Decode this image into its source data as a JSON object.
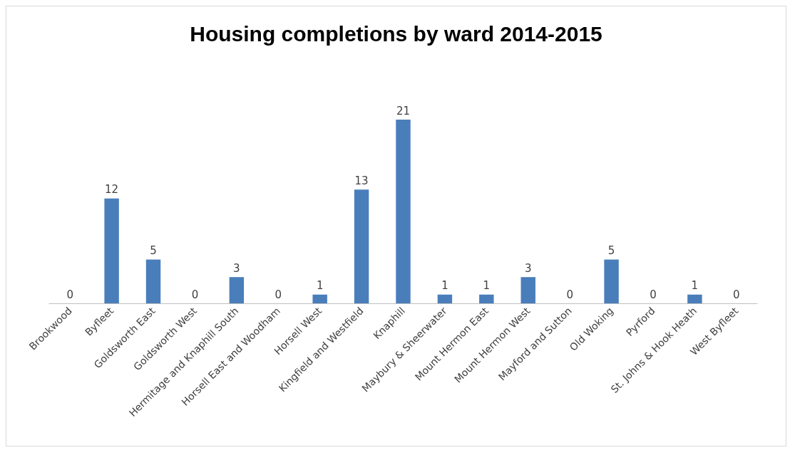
{
  "chart_data": {
    "type": "bar",
    "title": "Housing completions by ward 2014-2015",
    "categories": [
      "Brookwood",
      "Byfleet",
      "Goldsworth East",
      "Goldsworth West",
      "Hermitage and Knaphill South",
      "Horsell East and Woodham",
      "Horsell West",
      "Kingfield and Westfield",
      "Knaphill",
      "Maybury & Sheerwater",
      "Mount Hermon East",
      "Mount Hermon West",
      "Mayford and Sutton",
      "Old Woking",
      "Pyrford",
      "St. Johns & Hook Heath",
      "West Byfleet"
    ],
    "values": [
      0,
      12,
      5,
      0,
      3,
      0,
      1,
      13,
      21,
      1,
      1,
      3,
      0,
      5,
      0,
      1,
      0
    ],
    "color": "#4a7ebb",
    "data_labels": true
  }
}
